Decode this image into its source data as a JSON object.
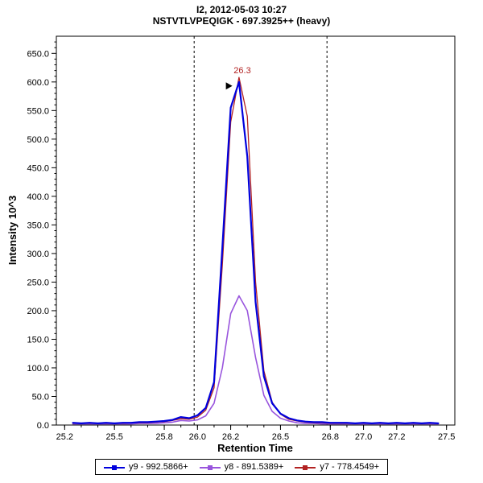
{
  "header": {
    "title_line1": "I2, 2012-05-03 10:27",
    "title_line2": "NSTVTLVPEQIGK - 697.3925++ (heavy)"
  },
  "chart_data": {
    "type": "line",
    "title": "I2, 2012-05-03 10:27",
    "subtitle": "NSTVTLVPEQIGK - 697.3925++ (heavy)",
    "xlabel": "Retention Time",
    "ylabel": "Intensity 10^3",
    "xlim": [
      25.15,
      27.55
    ],
    "ylim": [
      0,
      680
    ],
    "grid": false,
    "legend_position": "bottom",
    "xticks": [
      25.2,
      25.5,
      25.8,
      26.0,
      26.2,
      26.5,
      26.8,
      27.0,
      27.2,
      27.5
    ],
    "xtick_labels": [
      "25.2",
      "25.5",
      "25.8",
      "26.0",
      "26.2",
      "26.5",
      "26.8",
      "27.0",
      "27.2",
      "27.5"
    ],
    "yticks": [
      0,
      50,
      100,
      150,
      200,
      250,
      300,
      350,
      400,
      450,
      500,
      550,
      600,
      650
    ],
    "ytick_labels": [
      "0.0",
      "50.0",
      "100.0",
      "150.0",
      "200.0",
      "250.0",
      "300.0",
      "350.0",
      "400.0",
      "450.0",
      "500.0",
      "550.0",
      "600.0",
      "650.0"
    ],
    "integration_boundaries": [
      25.98,
      26.78
    ],
    "annotation": {
      "text": "26.3",
      "x": 26.27,
      "y": 600,
      "color": "#b22222",
      "arrow_x": 26.21,
      "arrow_y": 593
    },
    "x": [
      25.25,
      25.3,
      25.35,
      25.4,
      25.45,
      25.5,
      25.55,
      25.6,
      25.65,
      25.7,
      25.75,
      25.8,
      25.85,
      25.9,
      25.95,
      26.0,
      26.05,
      26.1,
      26.15,
      26.2,
      26.25,
      26.3,
      26.35,
      26.4,
      26.45,
      26.5,
      26.55,
      26.6,
      26.65,
      26.7,
      26.75,
      26.8,
      26.85,
      26.9,
      26.95,
      27.0,
      27.05,
      27.1,
      27.15,
      27.2,
      27.25,
      27.3,
      27.35,
      27.4,
      27.45
    ],
    "series": [
      {
        "label": "y9 - 992.5866+",
        "color": "#0000dd",
        "width": 2.2,
        "values": [
          4,
          3,
          4,
          3,
          4,
          3,
          4,
          4,
          5,
          5,
          6,
          7,
          9,
          14,
          12,
          17,
          30,
          75,
          310,
          555,
          600,
          470,
          215,
          85,
          38,
          20,
          12,
          8,
          6,
          5,
          5,
          4,
          4,
          4,
          3,
          4,
          3,
          4,
          3,
          4,
          3,
          4,
          3,
          4,
          3
        ]
      },
      {
        "label": "y8 - 891.5389+",
        "color": "#9955dd",
        "width": 1.6,
        "values": [
          2,
          2,
          2,
          2,
          2,
          2,
          2,
          2,
          3,
          3,
          3,
          4,
          5,
          8,
          7,
          9,
          16,
          38,
          100,
          195,
          226,
          200,
          118,
          52,
          24,
          12,
          7,
          4,
          3,
          3,
          2,
          2,
          2,
          2,
          2,
          2,
          2,
          2,
          2,
          2,
          2,
          2,
          2,
          2,
          2
        ]
      },
      {
        "label": "y7 - 778.4549+",
        "color": "#b22222",
        "width": 1.3,
        "values": [
          3,
          3,
          3,
          3,
          3,
          3,
          3,
          4,
          4,
          4,
          5,
          6,
          8,
          11,
          10,
          14,
          26,
          65,
          280,
          530,
          608,
          540,
          250,
          95,
          40,
          19,
          10,
          7,
          5,
          4,
          4,
          3,
          3,
          3,
          3,
          3,
          3,
          3,
          3,
          3,
          3,
          3,
          3,
          3,
          3
        ]
      }
    ]
  }
}
